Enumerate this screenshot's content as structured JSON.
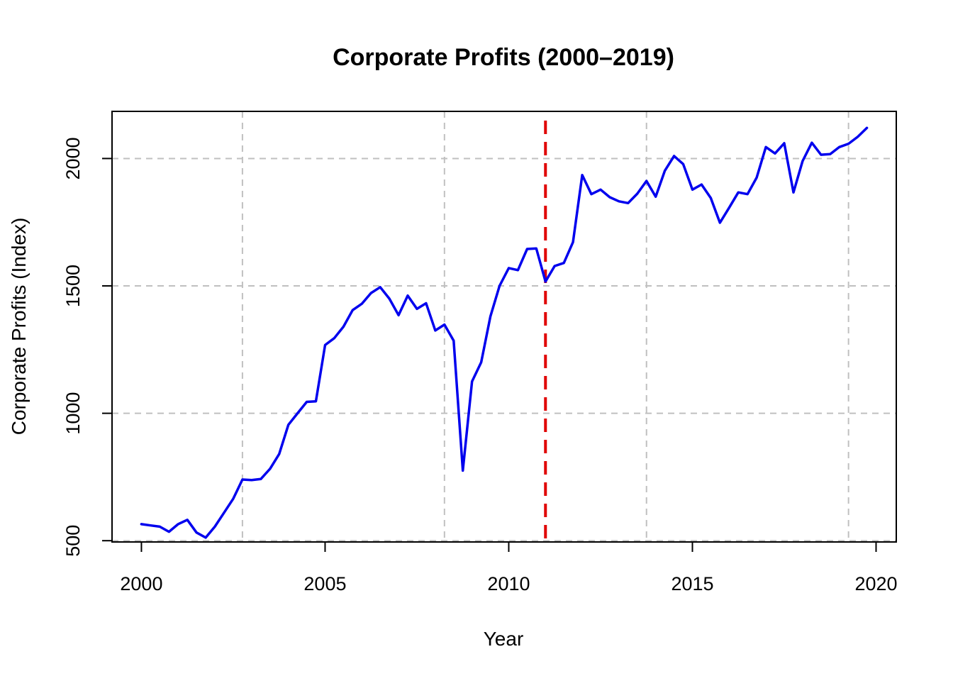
{
  "chart_data": {
    "type": "line",
    "title": "Corporate Profits (2000–2019)",
    "xlabel": "Year",
    "ylabel": "Corporate Profits (Index)",
    "xlim": [
      1999.2,
      2020.55
    ],
    "ylim": [
      495,
      2185
    ],
    "x_ticks": [
      2000,
      2005,
      2010,
      2015,
      2020
    ],
    "y_ticks": [
      500,
      1000,
      1500,
      2000
    ],
    "grid": true,
    "grid_x": [
      2002.75,
      2008.25,
      2013.75,
      2019.25
    ],
    "grid_y": [
      500,
      1000,
      1500,
      2000
    ],
    "reference_line": {
      "x": 2011.0,
      "color": "#e00000",
      "style": "dashed"
    },
    "series": [
      {
        "color": "#0000ee",
        "x": [
          2000.0,
          2000.25,
          2000.5,
          2000.75,
          2001.0,
          2001.25,
          2001.5,
          2001.75,
          2002.0,
          2002.25,
          2002.5,
          2002.75,
          2003.0,
          2003.25,
          2003.5,
          2003.75,
          2004.0,
          2004.25,
          2004.5,
          2004.75,
          2005.0,
          2005.25,
          2005.5,
          2005.75,
          2006.0,
          2006.25,
          2006.5,
          2006.75,
          2007.0,
          2007.25,
          2007.5,
          2007.75,
          2008.0,
          2008.25,
          2008.5,
          2008.75,
          2009.0,
          2009.25,
          2009.5,
          2009.75,
          2010.0,
          2010.25,
          2010.5,
          2010.75,
          2011.0,
          2011.25,
          2011.5,
          2011.75,
          2012.0,
          2012.25,
          2012.5,
          2012.75,
          2013.0,
          2013.25,
          2013.5,
          2013.75,
          2014.0,
          2014.25,
          2014.5,
          2014.75,
          2015.0,
          2015.25,
          2015.5,
          2015.75,
          2016.0,
          2016.25,
          2016.5,
          2016.75,
          2017.0,
          2017.25,
          2017.5,
          2017.75,
          2018.0,
          2018.25,
          2018.5,
          2018.75,
          2019.0,
          2019.25,
          2019.5,
          2019.75
        ],
        "values": [
          565,
          560,
          555,
          535,
          565,
          582,
          532,
          512,
          555,
          610,
          665,
          740,
          738,
          742,
          782,
          840,
          955,
          1000,
          1045,
          1047,
          1268,
          1295,
          1340,
          1405,
          1430,
          1472,
          1495,
          1450,
          1385,
          1462,
          1410,
          1432,
          1325,
          1348,
          1285,
          775,
          1125,
          1200,
          1380,
          1500,
          1570,
          1562,
          1645,
          1647,
          1517,
          1578,
          1590,
          1672,
          1935,
          1860,
          1878,
          1848,
          1832,
          1825,
          1862,
          1912,
          1850,
          1952,
          2010,
          1978,
          1878,
          1898,
          1845,
          1748,
          1807,
          1867,
          1860,
          1925,
          2045,
          2020,
          2060,
          1867,
          1990,
          2062,
          2015,
          2017,
          2045,
          2058,
          2085,
          2120
        ]
      }
    ]
  }
}
